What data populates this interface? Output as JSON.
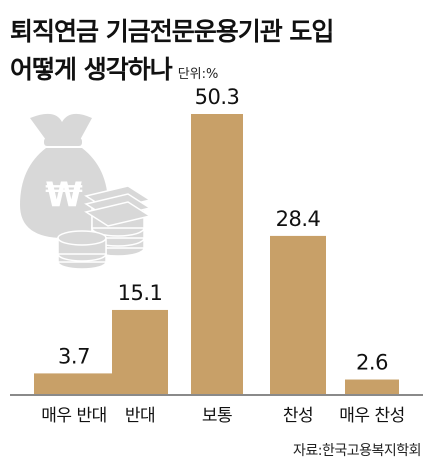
{
  "title": {
    "line1": "퇴직연금 기금전문운용기관 도입",
    "line2": "어떻게 생각하나",
    "unit": "단위:%"
  },
  "source": "자료:한국고용복지학회",
  "colors": {
    "bar": "#c8a068",
    "baseline": "#444444",
    "icon": "#d8d8d8",
    "icon_symbol": "#ffffff"
  },
  "chart_data": {
    "type": "bar",
    "categories": [
      "매우 반대",
      "반대",
      "보통",
      "찬성",
      "매우 찬성"
    ],
    "values": [
      3.7,
      15.1,
      50.3,
      28.4,
      2.6
    ],
    "value_labels": [
      "3.7",
      "15.1",
      "50.3",
      "28.4",
      "2.6"
    ],
    "ylim": [
      0,
      50.3
    ],
    "grid": false,
    "legend": "none"
  },
  "decoration": {
    "icon": "money-bag-and-coins-icon",
    "symbol": "₩"
  }
}
